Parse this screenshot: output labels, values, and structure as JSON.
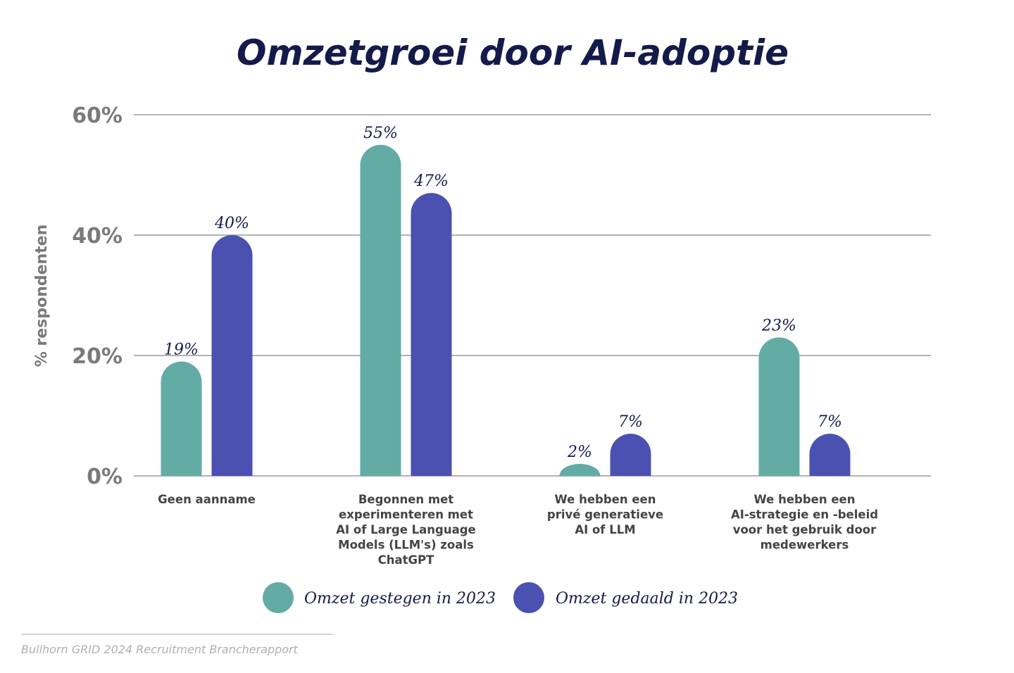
{
  "chart_data": {
    "type": "bar",
    "title": "Omzetgroei door AI-adoptie",
    "ylabel": "% respondenten",
    "xlabel": "",
    "ylim": [
      0,
      60
    ],
    "yticks": [
      0,
      20,
      40,
      60
    ],
    "ytick_labels": [
      "0%",
      "20%",
      "40%",
      "60%"
    ],
    "grid": true,
    "legend_position": "bottom",
    "categories": [
      [
        "Geen aanname"
      ],
      [
        "Begonnen met",
        "experimenteren met",
        "AI of Large Language",
        "Models (LLM's) zoals",
        "ChatGPT"
      ],
      [
        "We hebben een",
        "privé generatieve",
        "AI of LLM"
      ],
      [
        "We hebben een",
        "AI-strategie en -beleid",
        "voor het gebruik door",
        "medewerkers"
      ]
    ],
    "series": [
      {
        "name": "Omzet gestegen in 2023",
        "color": "#62aca5",
        "values": [
          19,
          55,
          2,
          23
        ],
        "labels": [
          "19%",
          "55%",
          "2%",
          "23%"
        ]
      },
      {
        "name": "Omzet gedaald in 2023",
        "color": "#4b51b0",
        "values": [
          40,
          47,
          7,
          7
        ],
        "labels": [
          "40%",
          "47%",
          "7%",
          "7%"
        ]
      }
    ],
    "source": "Bullhorn GRID 2024 Recruitment Brancherapport"
  },
  "colors": {
    "title": "#141a4a",
    "axis_text": "#7a7a7a",
    "grid": "#9a9a9a",
    "category_text": "#444444",
    "source_text": "#b0b0b0"
  }
}
